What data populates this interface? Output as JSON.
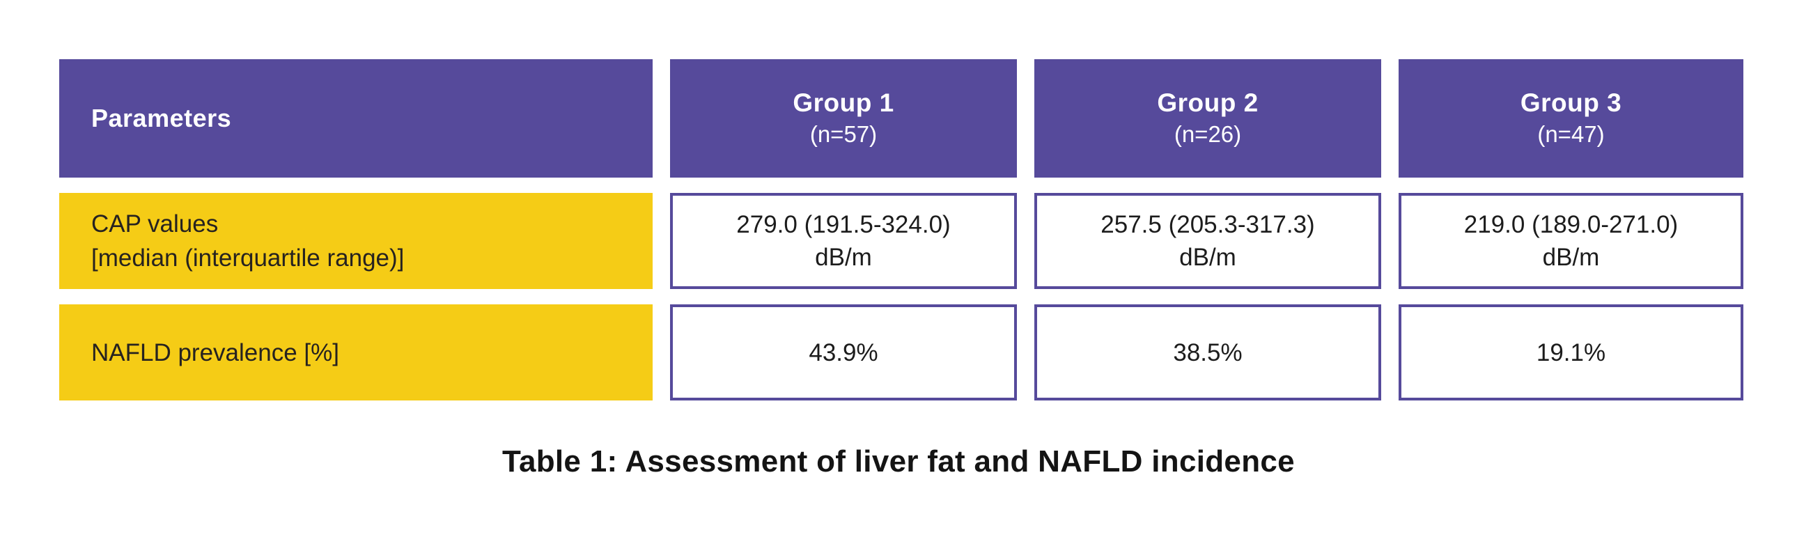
{
  "colors": {
    "header_bg": "#564a9b",
    "label_bg": "#f5cc16",
    "value_cell_border": "#564a9b",
    "header_text": "#ffffff",
    "body_text": "#1c1c1c"
  },
  "table": {
    "header": {
      "parameters_label": "Parameters",
      "groups": [
        {
          "name": "Group 1",
          "n": "(n=57)"
        },
        {
          "name": "Group 2",
          "n": "(n=26)"
        },
        {
          "name": "Group 3",
          "n": "(n=47)"
        }
      ]
    },
    "rows": [
      {
        "label_line1": "CAP values",
        "label_line2": "[median (interquartile range)]",
        "values": [
          {
            "line1": "279.0 (191.5-324.0)",
            "line2": "dB/m"
          },
          {
            "line1": "257.5 (205.3-317.3)",
            "line2": "dB/m"
          },
          {
            "line1": "219.0 (189.0-271.0)",
            "line2": "dB/m"
          }
        ]
      },
      {
        "label_line1": "NAFLD prevalence [%]",
        "values": [
          {
            "line1": "43.9%"
          },
          {
            "line1": "38.5%"
          },
          {
            "line1": "19.1%"
          }
        ]
      }
    ]
  },
  "caption": "Table 1: Assessment of liver fat and NAFLD incidence"
}
